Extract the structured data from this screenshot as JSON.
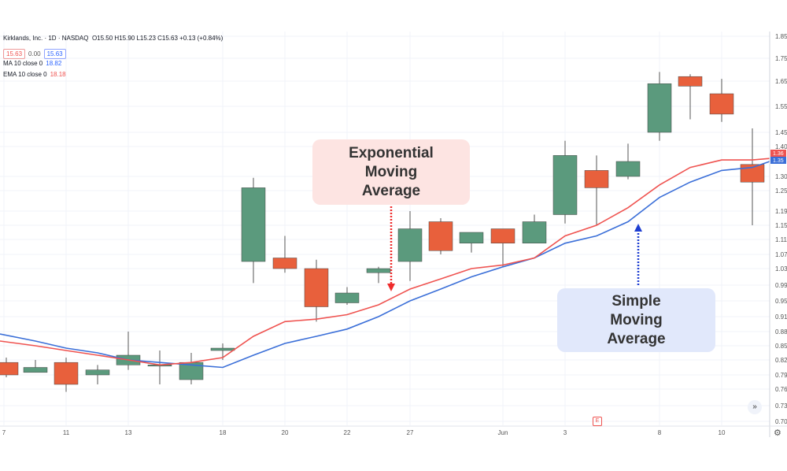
{
  "symbol": {
    "name": "Kirklands, Inc.",
    "interval": "1D",
    "exchange": "NASDAQ",
    "ohlc": "O15.50 H15.90 L15.23 C15.63 +0.13 (+0.84%)",
    "bid": "15.63",
    "spread": "0.00",
    "ask": "15.63"
  },
  "indicators": {
    "ma_label": "MA 10 close 0",
    "ma_value": "18.82",
    "ema_label": "EMA 10 close 0",
    "ema_value": "18.18"
  },
  "callouts": {
    "ema": "Exponential Moving Average",
    "sma": "Simple Moving Average"
  },
  "colors": {
    "up": "#5b9a7d",
    "down": "#e8603c",
    "ema": "#ef5350",
    "sma": "#3b6fd8",
    "grid": "#f0f3fa",
    "ema_arrow": "#ef2b2b",
    "sma_arrow": "#1f3fd1"
  },
  "icons": [
    "settings-gear-icon",
    "scroll-forward-icon",
    "earnings-marker-icon"
  ],
  "chart_data": {
    "type": "candlestick",
    "y_ticks": [
      1.85,
      1.75,
      1.65,
      1.55,
      1.45,
      1.4,
      1.3,
      1.25,
      1.19,
      1.15,
      1.11,
      1.07,
      1.03,
      0.99,
      0.95,
      0.91,
      0.88,
      0.85,
      0.82,
      0.79,
      0.76,
      0.73,
      0.7
    ],
    "ylim": [
      0.7,
      1.85
    ],
    "x_ticks": [
      "7",
      "11",
      "13",
      "18",
      "20",
      "22",
      "27",
      "Jun",
      "3",
      "8",
      "10"
    ],
    "last_value_labels": {
      "ema": "1.36",
      "sma": "1.35"
    },
    "candles": [
      {
        "i": 0,
        "o": 0.815,
        "h": 0.825,
        "l": 0.785,
        "c": 0.79
      },
      {
        "i": 1,
        "o": 0.795,
        "h": 0.82,
        "l": 0.795,
        "c": 0.805
      },
      {
        "i": 2,
        "o": 0.815,
        "h": 0.825,
        "l": 0.755,
        "c": 0.77
      },
      {
        "i": 3,
        "o": 0.79,
        "h": 0.81,
        "l": 0.77,
        "c": 0.8
      },
      {
        "i": 4,
        "o": 0.81,
        "h": 0.88,
        "l": 0.8,
        "c": 0.83
      },
      {
        "i": 5,
        "o": 0.81,
        "h": 0.84,
        "l": 0.77,
        "c": 0.81
      },
      {
        "i": 6,
        "o": 0.78,
        "h": 0.835,
        "l": 0.77,
        "c": 0.815
      },
      {
        "i": 7,
        "o": 0.84,
        "h": 0.855,
        "l": 0.82,
        "c": 0.845
      },
      {
        "i": 8,
        "o": 1.05,
        "h": 1.295,
        "l": 0.995,
        "c": 1.26
      },
      {
        "i": 9,
        "o": 1.06,
        "h": 1.12,
        "l": 1.02,
        "c": 1.03
      },
      {
        "i": 10,
        "o": 1.03,
        "h": 1.055,
        "l": 0.9,
        "c": 0.935
      },
      {
        "i": 11,
        "o": 0.945,
        "h": 0.985,
        "l": 0.94,
        "c": 0.97
      },
      {
        "i": 12,
        "o": 1.02,
        "h": 1.035,
        "l": 0.995,
        "c": 1.03
      },
      {
        "i": 13,
        "o": 1.05,
        "h": 1.19,
        "l": 1.0,
        "c": 1.14
      },
      {
        "i": 14,
        "o": 1.16,
        "h": 1.17,
        "l": 1.07,
        "c": 1.08
      },
      {
        "i": 15,
        "o": 1.1,
        "h": 1.13,
        "l": 1.075,
        "c": 1.13
      },
      {
        "i": 16,
        "o": 1.14,
        "h": 1.14,
        "l": 1.035,
        "c": 1.1
      },
      {
        "i": 17,
        "o": 1.1,
        "h": 1.18,
        "l": 1.1,
        "c": 1.16
      },
      {
        "i": 18,
        "o": 1.18,
        "h": 1.42,
        "l": 1.155,
        "c": 1.37
      },
      {
        "i": 19,
        "o": 1.32,
        "h": 1.37,
        "l": 1.15,
        "c": 1.26
      },
      {
        "i": 20,
        "o": 1.3,
        "h": 1.41,
        "l": 1.29,
        "c": 1.35
      },
      {
        "i": 21,
        "o": 1.45,
        "h": 1.69,
        "l": 1.42,
        "c": 1.64
      },
      {
        "i": 22,
        "o": 1.67,
        "h": 1.68,
        "l": 1.5,
        "c": 1.63
      },
      {
        "i": 23,
        "o": 1.6,
        "h": 1.66,
        "l": 1.49,
        "c": 1.52
      },
      {
        "i": 24,
        "o": 1.34,
        "h": 1.465,
        "l": 1.15,
        "c": 1.28
      }
    ],
    "ema_series": [
      0.86,
      0.85,
      0.84,
      0.83,
      0.82,
      0.81,
      0.815,
      0.825,
      0.87,
      0.9,
      0.905,
      0.915,
      0.94,
      0.98,
      1.005,
      1.03,
      1.04,
      1.06,
      1.12,
      1.15,
      1.2,
      1.27,
      1.33,
      1.355,
      1.355,
      1.36
    ],
    "sma_series": [
      0.875,
      0.86,
      0.845,
      0.835,
      0.82,
      0.815,
      0.81,
      0.805,
      0.83,
      0.855,
      0.87,
      0.885,
      0.91,
      0.95,
      0.98,
      1.01,
      1.035,
      1.06,
      1.1,
      1.12,
      1.16,
      1.23,
      1.28,
      1.32,
      1.33,
      1.35
    ]
  }
}
